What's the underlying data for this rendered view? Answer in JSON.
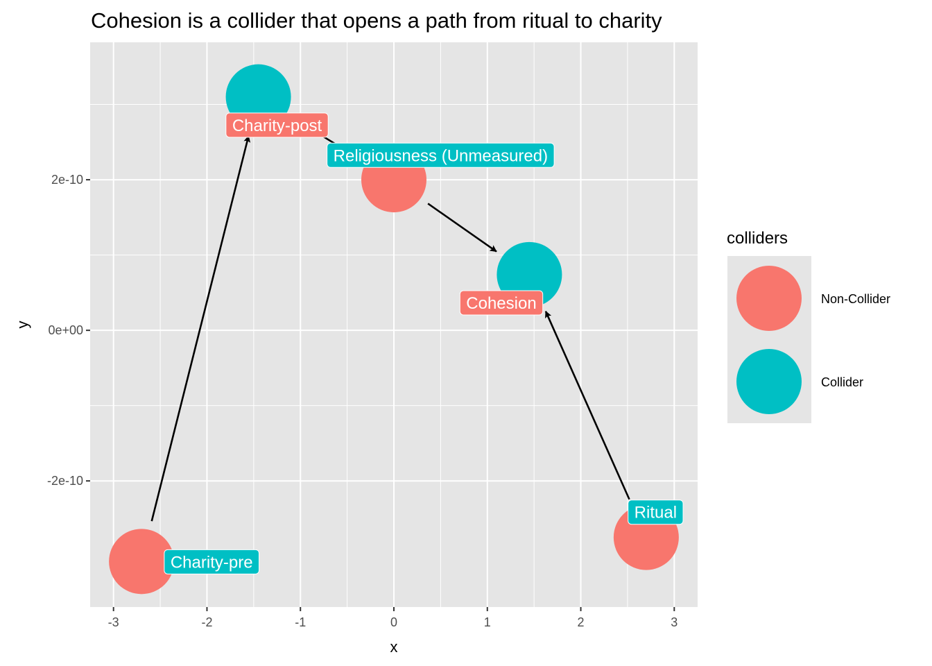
{
  "chart_data": {
    "type": "scatter",
    "subtype": "dag",
    "title": "Cohesion is a collider that opens a path from ritual to charity",
    "xlabel": "x",
    "ylabel": "y",
    "xlim": [
      -3.25,
      3.25
    ],
    "ylim": [
      -3.675e-10,
      3.825e-10
    ],
    "x_ticks": [
      -3,
      -2,
      -1,
      0,
      1,
      2,
      3
    ],
    "x_tick_labels": [
      "-3",
      "-2",
      "-1",
      "0",
      "1",
      "2",
      "3"
    ],
    "x_minor": [
      -2.5,
      -1.5,
      -0.5,
      0.5,
      1.5,
      2.5
    ],
    "y_ticks": [
      -2e-10,
      0,
      2e-10
    ],
    "y_tick_labels": [
      "-2e-10",
      "0e+00",
      "2e-10"
    ],
    "y_minor": [
      -1e-10,
      1e-10,
      3e-10
    ],
    "grid": true,
    "colors": {
      "Non-Collider": "#f8766d",
      "Collider": "#00bfc4",
      "panel": "#e5e5e5",
      "grid": "#ffffff"
    },
    "nodes": [
      {
        "name": "Religiousness (Unmeasured)",
        "x": 0.0,
        "y": 2e-10,
        "group": "Non-Collider",
        "label_group": "Collider",
        "label_dx": 0.5,
        "label_dy": 3.3e-11
      },
      {
        "name": "Charity-post",
        "x": -1.45,
        "y": 3.1e-10,
        "group": "Collider",
        "label_group": "Non-Collider",
        "label_dx": 0.2,
        "label_dy": -3.7e-11
      },
      {
        "name": "Cohesion",
        "x": 1.45,
        "y": 7.4e-11,
        "group": "Collider",
        "label_group": "Non-Collider",
        "label_dx": -0.3,
        "label_dy": -3.7e-11
      },
      {
        "name": "Charity-pre",
        "x": -2.7,
        "y": -3.07e-10,
        "group": "Non-Collider",
        "label_group": "Collider",
        "label_dx": 0.75,
        "label_dy": 0.0
      },
      {
        "name": "Ritual",
        "x": 2.7,
        "y": -2.75e-10,
        "group": "Non-Collider",
        "label_group": "Collider",
        "label_dx": 0.1,
        "label_dy": 3.4e-11
      }
    ],
    "edges": [
      {
        "from": "Religiousness (Unmeasured)",
        "to": "Charity-post"
      },
      {
        "from": "Religiousness (Unmeasured)",
        "to": "Cohesion"
      },
      {
        "from": "Charity-pre",
        "to": "Charity-post"
      },
      {
        "from": "Ritual",
        "to": "Cohesion"
      }
    ],
    "legend": {
      "title": "colliders",
      "position": "right",
      "entries": [
        {
          "label": "Non-Collider",
          "color": "#f8766d"
        },
        {
          "label": "Collider",
          "color": "#00bfc4"
        }
      ]
    }
  }
}
